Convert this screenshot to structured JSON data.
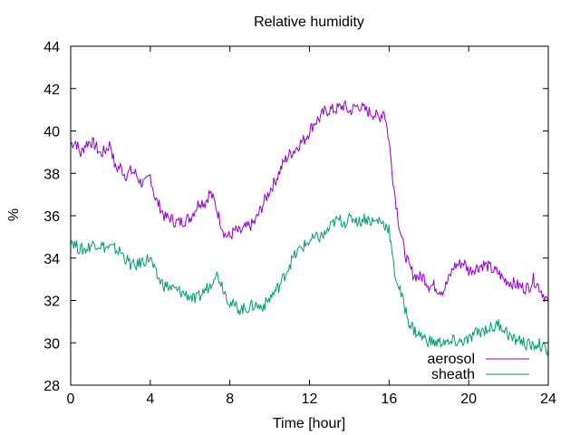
{
  "chart_data": {
    "type": "line",
    "title": "Relative humidity",
    "xlabel": "Time [hour]",
    "ylabel": "%",
    "xlim": [
      0,
      24
    ],
    "ylim": [
      28,
      44
    ],
    "xticks": [
      0,
      4,
      8,
      12,
      16,
      20,
      24
    ],
    "yticks": [
      28,
      30,
      32,
      34,
      36,
      38,
      40,
      42,
      44
    ],
    "grid": false,
    "legend_position": "bottom-right",
    "series": [
      {
        "name": "aerosol",
        "color": "#9400d3",
        "x": [
          0,
          0.25,
          0.5,
          0.75,
          1,
          1.25,
          1.5,
          1.75,
          2,
          2.25,
          2.5,
          2.75,
          3,
          3.25,
          3.5,
          3.75,
          4,
          4.25,
          4.5,
          4.75,
          5,
          5.25,
          5.5,
          5.75,
          6,
          6.25,
          6.5,
          6.75,
          7,
          7.25,
          7.5,
          7.75,
          8,
          8.25,
          8.5,
          8.75,
          9,
          9.25,
          9.5,
          9.75,
          10,
          10.25,
          10.5,
          10.75,
          11,
          11.25,
          11.5,
          11.75,
          12,
          12.25,
          12.5,
          12.75,
          13,
          13.25,
          13.5,
          13.75,
          14,
          14.25,
          14.5,
          14.75,
          15,
          15.25,
          15.5,
          15.75,
          16,
          16.25,
          16.5,
          16.75,
          17,
          17.25,
          17.5,
          17.75,
          18,
          18.25,
          18.5,
          18.75,
          19,
          19.25,
          19.5,
          19.75,
          20,
          20.25,
          20.5,
          20.75,
          21,
          21.25,
          21.5,
          21.75,
          22,
          22.25,
          22.5,
          22.75,
          23,
          23.25,
          23.5,
          23.75,
          24
        ],
        "values": [
          39.4,
          39.5,
          38.9,
          39.4,
          39.5,
          39.3,
          38.9,
          39.1,
          39.4,
          38.2,
          38.3,
          37.9,
          38.1,
          38.0,
          37.6,
          37.5,
          37.9,
          36.8,
          36.4,
          35.9,
          35.9,
          35.7,
          35.7,
          35.8,
          35.9,
          36.3,
          36.7,
          36.6,
          37.1,
          36.6,
          35.8,
          35.1,
          35.0,
          35.3,
          35.2,
          35.4,
          35.5,
          35.7,
          36.2,
          36.7,
          37.2,
          37.6,
          38.1,
          38.6,
          38.9,
          39.1,
          39.4,
          39.6,
          40.0,
          40.4,
          40.6,
          40.9,
          41.0,
          41.0,
          41.1,
          41.2,
          40.9,
          41.1,
          41.2,
          41.0,
          40.9,
          40.8,
          40.6,
          41.0,
          39.5,
          37.3,
          35.6,
          34.4,
          33.6,
          33.2,
          33.1,
          33.1,
          32.7,
          32.7,
          32.5,
          32.5,
          33.0,
          33.6,
          33.7,
          33.8,
          33.4,
          33.5,
          33.6,
          33.7,
          33.6,
          33.4,
          33.3,
          33.0,
          32.9,
          32.8,
          32.7,
          32.6,
          32.6,
          33.0,
          32.7,
          32.3,
          31.9
        ]
      },
      {
        "name": "sheath",
        "color": "#009e73",
        "x": [
          0,
          0.25,
          0.5,
          0.75,
          1,
          1.25,
          1.5,
          1.75,
          2,
          2.25,
          2.5,
          2.75,
          3,
          3.25,
          3.5,
          3.75,
          4,
          4.25,
          4.5,
          4.75,
          5,
          5.25,
          5.5,
          5.75,
          6,
          6.25,
          6.5,
          6.75,
          7,
          7.25,
          7.5,
          7.75,
          8,
          8.25,
          8.5,
          8.75,
          9,
          9.25,
          9.5,
          9.75,
          10,
          10.25,
          10.5,
          10.75,
          11,
          11.25,
          11.5,
          11.75,
          12,
          12.25,
          12.5,
          12.75,
          13,
          13.25,
          13.5,
          13.75,
          14,
          14.25,
          14.5,
          14.75,
          15,
          15.25,
          15.5,
          15.75,
          16,
          16.25,
          16.5,
          16.75,
          17,
          17.25,
          17.5,
          17.75,
          18,
          18.25,
          18.5,
          18.75,
          19,
          19.25,
          19.5,
          19.75,
          20,
          20.25,
          20.5,
          20.75,
          21,
          21.25,
          21.5,
          21.75,
          22,
          22.25,
          22.5,
          22.75,
          23,
          23.25,
          23.5,
          23.75,
          24
        ],
        "values": [
          34.9,
          34.6,
          34.4,
          34.4,
          34.6,
          34.7,
          34.6,
          34.5,
          34.5,
          34.4,
          34.3,
          34.0,
          33.7,
          33.6,
          33.8,
          33.9,
          34.0,
          33.3,
          32.9,
          32.7,
          32.6,
          32.5,
          32.4,
          32.3,
          32.2,
          32.0,
          32.2,
          32.5,
          32.7,
          33.3,
          33.0,
          32.4,
          31.9,
          31.7,
          31.6,
          31.6,
          31.7,
          31.8,
          31.7,
          31.8,
          32.1,
          32.4,
          32.7,
          33.2,
          33.7,
          34.1,
          34.4,
          34.6,
          34.8,
          34.9,
          35.0,
          35.1,
          35.4,
          35.7,
          35.8,
          35.7,
          35.8,
          35.9,
          35.7,
          35.9,
          35.8,
          35.7,
          35.8,
          35.6,
          35.4,
          33.4,
          32.6,
          31.8,
          31.0,
          30.6,
          30.4,
          30.2,
          30.1,
          30.0,
          30.0,
          30.1,
          29.9,
          30.1,
          30.0,
          30.1,
          30.1,
          30.4,
          30.5,
          30.6,
          30.7,
          30.7,
          30.9,
          30.7,
          30.4,
          30.1,
          30.2,
          30.0,
          29.9,
          29.8,
          30.0,
          29.7,
          29.7
        ]
      }
    ]
  }
}
